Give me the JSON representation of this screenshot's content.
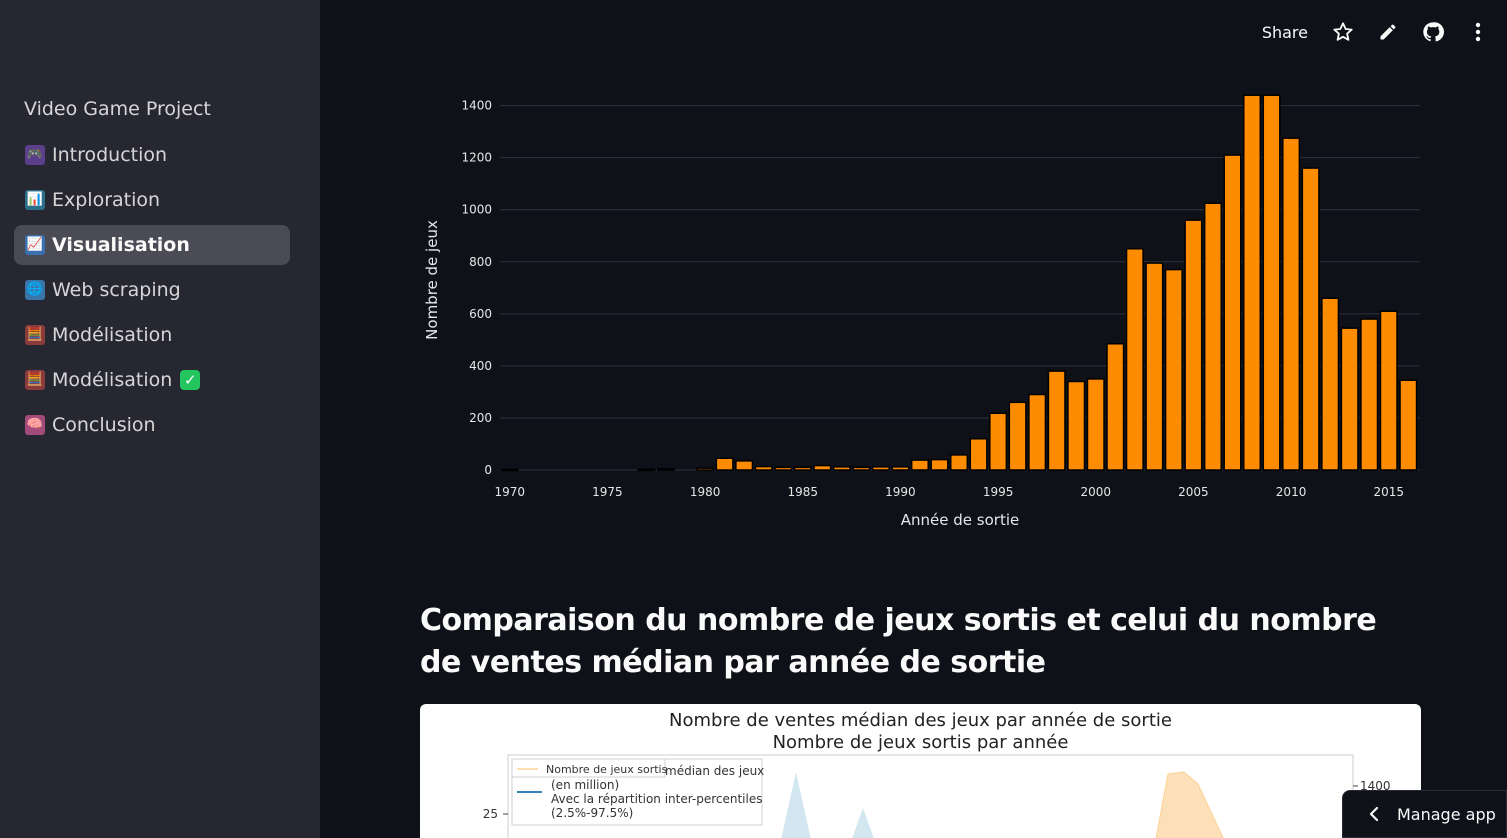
{
  "sidebar": {
    "app_title": "Video Game Project",
    "items": [
      {
        "label": "Introduction",
        "icon": "🎮",
        "active": false
      },
      {
        "label": "Exploration",
        "icon": "📊",
        "active": false
      },
      {
        "label": "Visualisation",
        "icon": "📈",
        "active": true
      },
      {
        "label": "Web scraping",
        "icon": "🌐",
        "active": false
      },
      {
        "label": "Modélisation",
        "icon": "🧮",
        "active": false
      },
      {
        "label": "Modélisation",
        "icon": "🧮",
        "active": false,
        "badge": "✅"
      },
      {
        "label": "Conclusion",
        "icon": "🧠",
        "active": false
      }
    ]
  },
  "header": {
    "share_label": "Share",
    "icons": [
      "star-icon",
      "edit-icon",
      "github-icon",
      "more-vert-icon"
    ]
  },
  "chart_data": [
    {
      "type": "bar",
      "xlabel": "Année de sortie",
      "ylabel": "Nombre de jeux",
      "xticks": [
        1970,
        1975,
        1980,
        1985,
        1990,
        1995,
        2000,
        2005,
        2010,
        2015
      ],
      "yticks": [
        0,
        200,
        400,
        600,
        800,
        1000,
        1200,
        1400
      ],
      "xlim": [
        1969.5,
        2016.6
      ],
      "ylim": [
        0,
        1460
      ],
      "grid": true,
      "bar_color": "#ff8c00",
      "years": [
        1970,
        1971,
        1972,
        1973,
        1974,
        1975,
        1976,
        1977,
        1978,
        1979,
        1980,
        1981,
        1982,
        1983,
        1984,
        1985,
        1986,
        1987,
        1988,
        1989,
        1990,
        1991,
        1992,
        1993,
        1994,
        1995,
        1996,
        1997,
        1998,
        1999,
        2000,
        2001,
        2002,
        2003,
        2004,
        2005,
        2006,
        2007,
        2008,
        2009,
        2010,
        2011,
        2012,
        2013,
        2014,
        2015,
        2016
      ],
      "values": [
        2,
        0,
        0,
        0,
        0,
        0,
        0,
        3,
        5,
        0,
        7,
        45,
        35,
        13,
        10,
        10,
        17,
        12,
        10,
        12,
        12,
        38,
        40,
        58,
        120,
        218,
        260,
        290,
        380,
        340,
        350,
        485,
        850,
        795,
        770,
        960,
        1025,
        1210,
        1440,
        1440,
        1275,
        1160,
        660,
        545,
        580,
        610,
        345
      ]
    },
    {
      "type": "area",
      "title": "Nombre de ventes médian des jeux par année de sortie",
      "subtitle": "Nombre de jeux sortis par année",
      "legend": [
        "Nombre de jeux sortis",
        "...édian des jeux (en million) Avec la répartition inter-percentiles (2.5%-97.5%)"
      ],
      "legend_position": "top-left",
      "visible_yticks_left": [
        25
      ],
      "visible_yticks_right": [
        1400
      ]
    }
  ],
  "section": {
    "heading": "Comparaison du nombre de jeux sortis et celui du nombre de ventes médian par année de sortie"
  },
  "figure2": {
    "title_line1": "Nombre de ventes médian des jeux par année de sortie",
    "title_line2": "Nombre de jeux sortis par année",
    "legend_item1": "Nombre de jeux sortis",
    "legend_item2_line1": "médian des jeux",
    "legend_item2_line2": "(en million)",
    "legend_item2_line3": "Avec la répartition inter-percentiles",
    "legend_item2_line4": "(2.5%-97.5%)",
    "ytick_left": "25",
    "ytick_right": "1400"
  },
  "manage_app": {
    "label": "Manage app"
  }
}
